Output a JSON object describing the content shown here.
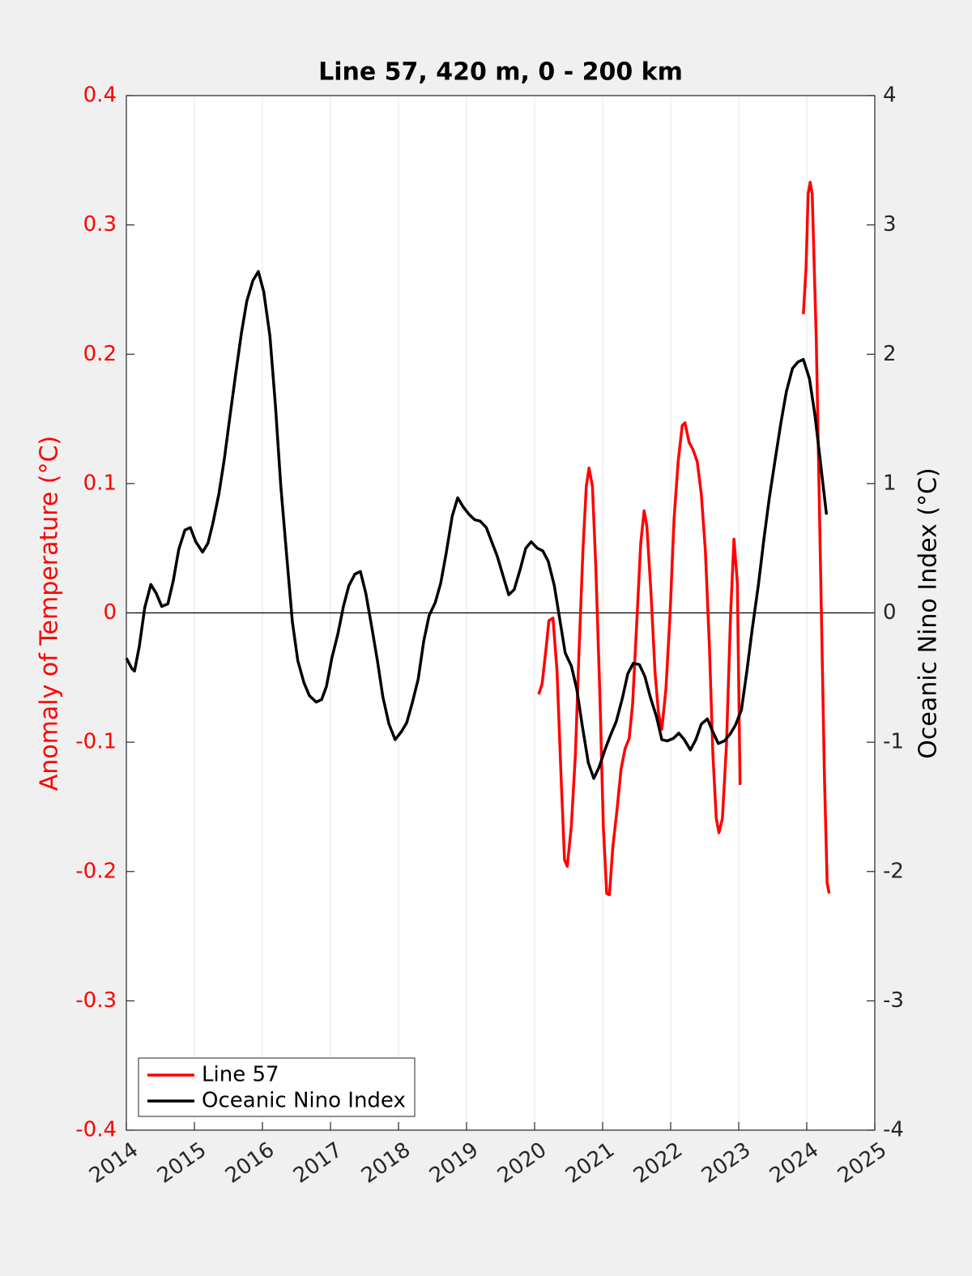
{
  "chart_data": {
    "type": "line",
    "title": "Line 57, 420 m, 0 - 200 km",
    "ylabel": "Anomaly of Temperature (°C)",
    "y2label": "Oceanic Nino Index (°C)",
    "xlim": [
      2014,
      2025
    ],
    "xticks": [
      2014,
      2015,
      2016,
      2017,
      2018,
      2019,
      2020,
      2021,
      2022,
      2023,
      2024,
      2025
    ],
    "ylim": [
      -0.4,
      0.4
    ],
    "yticks": [
      -0.4,
      -0.3,
      -0.2,
      -0.1,
      0,
      0.1,
      0.2,
      0.3,
      0.4
    ],
    "y2lim": [
      -4,
      4
    ],
    "y2ticks": [
      -4,
      -3,
      -2,
      -1,
      0,
      1,
      2,
      3,
      4
    ],
    "xgrid": true,
    "hline": 0,
    "legend": "southwest",
    "series": [
      {
        "name": "Line 57",
        "color": "#ff0000",
        "axis": "y",
        "x": [
          2020.06,
          2020.11,
          2020.17,
          2020.21,
          2020.27,
          2020.33,
          2020.39,
          2020.44,
          2020.48,
          2020.54,
          2020.6,
          2020.65,
          2020.71,
          2020.76,
          2020.8,
          2020.85,
          2020.9,
          2020.96,
          2021.01,
          2021.06,
          2021.1,
          2021.15,
          2021.21,
          2021.27,
          2021.33,
          2021.39,
          2021.44,
          2021.5,
          2021.56,
          2021.61,
          2021.65,
          2021.71,
          2021.77,
          2021.82,
          2021.87,
          2021.93,
          2021.99,
          2022.05,
          2022.11,
          2022.17,
          2022.21,
          2022.27,
          2022.33,
          2022.39,
          2022.45,
          2022.51,
          2022.57,
          2022.62,
          2022.67,
          2022.71,
          2022.76,
          2022.82,
          2022.88,
          2022.93,
          2022.98,
          2023.02,
          2023.5,
          2023.95,
          2023.99,
          2024.02,
          2024.05,
          2024.08,
          2024.14,
          2024.2,
          2024.26,
          2024.3,
          2024.33
        ],
        "values": [
          -0.063,
          -0.055,
          -0.027,
          -0.006,
          -0.004,
          -0.045,
          -0.128,
          -0.191,
          -0.196,
          -0.165,
          -0.109,
          -0.034,
          0.048,
          0.098,
          0.112,
          0.098,
          0.035,
          -0.065,
          -0.165,
          -0.217,
          -0.218,
          -0.181,
          -0.153,
          -0.121,
          -0.105,
          -0.097,
          -0.071,
          -0.009,
          0.054,
          0.079,
          0.067,
          0.016,
          -0.046,
          -0.077,
          -0.09,
          -0.059,
          -0.002,
          0.073,
          0.117,
          0.145,
          0.147,
          0.132,
          0.126,
          0.117,
          0.092,
          0.048,
          -0.027,
          -0.109,
          -0.159,
          -0.17,
          -0.159,
          -0.102,
          -0.002,
          0.057,
          0.023,
          -0.133,
          null,
          0.231,
          0.267,
          0.324,
          0.333,
          0.324,
          0.211,
          0.042,
          -0.127,
          -0.209,
          -0.217
        ]
      },
      {
        "name": "Oceanic Nino Index",
        "color": "#000000",
        "axis": "y2",
        "x": [
          2014.0,
          2014.08,
          2014.12,
          2014.19,
          2014.27,
          2014.36,
          2014.44,
          2014.52,
          2014.61,
          2014.69,
          2014.77,
          2014.86,
          2014.94,
          2015.02,
          2015.12,
          2015.2,
          2015.27,
          2015.36,
          2015.44,
          2015.52,
          2015.61,
          2015.69,
          2015.77,
          2015.86,
          2015.94,
          2016.02,
          2016.11,
          2016.19,
          2016.27,
          2016.36,
          2016.44,
          2016.52,
          2016.61,
          2016.69,
          2016.79,
          2016.87,
          2016.94,
          2017.02,
          2017.11,
          2017.19,
          2017.27,
          2017.36,
          2017.44,
          2017.52,
          2017.61,
          2017.69,
          2017.77,
          2017.86,
          2017.95,
          2018.04,
          2018.12,
          2018.2,
          2018.29,
          2018.37,
          2018.45,
          2018.54,
          2018.62,
          2018.7,
          2018.79,
          2018.87,
          2018.95,
          2019.04,
          2019.12,
          2019.2,
          2019.29,
          2019.37,
          2019.45,
          2019.54,
          2019.62,
          2019.7,
          2019.79,
          2019.87,
          2019.95,
          2020.04,
          2020.12,
          2020.2,
          2020.29,
          2020.37,
          2020.45,
          2020.54,
          2020.62,
          2020.7,
          2020.79,
          2020.87,
          2020.95,
          2021.04,
          2021.12,
          2021.2,
          2021.29,
          2021.37,
          2021.45,
          2021.54,
          2021.62,
          2021.7,
          2021.79,
          2021.87,
          2021.95,
          2022.04,
          2022.12,
          2022.2,
          2022.29,
          2022.37,
          2022.45,
          2022.54,
          2022.62,
          2022.7,
          2022.79,
          2022.87,
          2022.95,
          2023.04,
          2023.12,
          2023.2,
          2023.29,
          2023.37,
          2023.45,
          2023.54,
          2023.62,
          2023.7,
          2023.79,
          2023.87,
          2023.95,
          2024.04,
          2024.12,
          2024.2,
          2024.29
        ],
        "values": [
          -0.35,
          -0.43,
          -0.45,
          -0.26,
          0.04,
          0.22,
          0.15,
          0.05,
          0.07,
          0.25,
          0.49,
          0.64,
          0.66,
          0.55,
          0.47,
          0.54,
          0.69,
          0.92,
          1.19,
          1.51,
          1.86,
          2.16,
          2.41,
          2.57,
          2.64,
          2.48,
          2.14,
          1.61,
          0.98,
          0.42,
          -0.07,
          -0.37,
          -0.54,
          -0.64,
          -0.69,
          -0.67,
          -0.57,
          -0.35,
          -0.16,
          0.05,
          0.21,
          0.3,
          0.32,
          0.15,
          -0.12,
          -0.37,
          -0.65,
          -0.86,
          -0.98,
          -0.92,
          -0.85,
          -0.7,
          -0.51,
          -0.22,
          -0.02,
          0.08,
          0.23,
          0.46,
          0.75,
          0.89,
          0.82,
          0.76,
          0.72,
          0.71,
          0.66,
          0.55,
          0.44,
          0.28,
          0.14,
          0.18,
          0.34,
          0.5,
          0.55,
          0.5,
          0.48,
          0.4,
          0.21,
          -0.05,
          -0.31,
          -0.41,
          -0.59,
          -0.87,
          -1.16,
          -1.28,
          -1.19,
          -1.05,
          -0.94,
          -0.84,
          -0.66,
          -0.47,
          -0.39,
          -0.4,
          -0.49,
          -0.65,
          -0.8,
          -0.98,
          -0.99,
          -0.97,
          -0.93,
          -0.98,
          -1.06,
          -0.98,
          -0.86,
          -0.82,
          -0.92,
          -1.01,
          -0.99,
          -0.94,
          -0.87,
          -0.75,
          -0.45,
          -0.12,
          0.22,
          0.57,
          0.89,
          1.2,
          1.47,
          1.71,
          1.89,
          1.94,
          1.96,
          1.81,
          1.53,
          1.17,
          0.76
        ]
      }
    ]
  }
}
